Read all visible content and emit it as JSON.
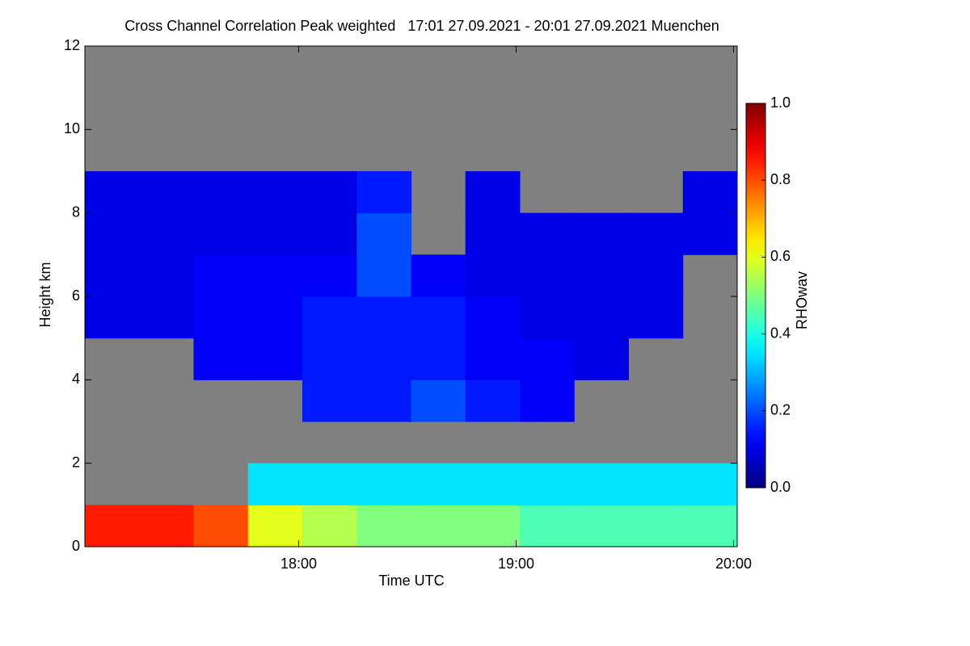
{
  "chart_data": {
    "type": "heatmap",
    "title": "Cross Channel Correlation Peak weighted   17:01 27.09.2021 - 20:01 27.09.2021 Muenchen",
    "xlabel": "Time UTC",
    "ylabel": "Height km",
    "colorbar_label": "RHOwav",
    "xlim": [
      17.0167,
      20.0167
    ],
    "xticks": [
      {
        "value": 18,
        "label": "18:00"
      },
      {
        "value": 19,
        "label": "19:00"
      },
      {
        "value": 20,
        "label": "20:00"
      }
    ],
    "ylim": [
      0,
      12
    ],
    "yticks": [
      0,
      2,
      4,
      6,
      8,
      10,
      12
    ],
    "zlim": [
      0,
      1
    ],
    "zticks": [
      {
        "value": 0,
        "label": "0.0"
      },
      0.2,
      0.4,
      0.6,
      0.8,
      {
        "value": 1,
        "label": "1.0"
      }
    ],
    "colormap": "jet",
    "background": "#808080",
    "xbins": [
      17.0167,
      17.2667,
      17.5167,
      17.7667,
      18.0167,
      18.2667,
      18.5167,
      18.7667,
      19.0167,
      19.2667,
      19.5167,
      19.7667,
      20.0167
    ],
    "ybins": [
      0,
      1,
      2,
      3,
      4,
      5,
      6,
      7,
      8,
      9,
      10,
      11,
      12
    ],
    "z": [
      [
        0.85,
        0.85,
        0.8,
        0.6,
        0.55,
        0.5,
        0.5,
        0.5,
        0.45,
        0.45,
        0.45,
        0.45
      ],
      [
        null,
        null,
        null,
        0.35,
        0.35,
        0.35,
        0.35,
        0.35,
        0.35,
        0.35,
        0.35,
        0.35
      ],
      [
        null,
        null,
        null,
        null,
        null,
        null,
        null,
        null,
        null,
        null,
        null,
        null
      ],
      [
        null,
        null,
        null,
        null,
        0.15,
        0.15,
        0.2,
        0.15,
        0.12,
        null,
        null,
        null
      ],
      [
        null,
        null,
        0.12,
        0.12,
        0.15,
        0.15,
        0.15,
        0.12,
        0.12,
        0.1,
        null,
        null
      ],
      [
        0.1,
        0.1,
        0.12,
        0.12,
        0.15,
        0.15,
        0.15,
        0.12,
        0.1,
        0.1,
        0.1,
        null
      ],
      [
        0.1,
        0.1,
        0.12,
        0.12,
        0.12,
        0.2,
        0.12,
        0.1,
        0.1,
        0.1,
        0.1,
        null
      ],
      [
        0.1,
        0.1,
        0.1,
        0.1,
        0.1,
        0.2,
        null,
        0.1,
        0.1,
        0.1,
        0.1,
        0.1
      ],
      [
        0.1,
        0.1,
        0.1,
        0.1,
        0.1,
        0.15,
        null,
        0.1,
        null,
        null,
        null,
        0.1
      ],
      [
        null,
        null,
        null,
        null,
        null,
        null,
        null,
        null,
        null,
        null,
        null,
        null
      ],
      [
        null,
        null,
        null,
        null,
        null,
        null,
        null,
        null,
        null,
        null,
        null,
        null
      ],
      [
        null,
        null,
        null,
        null,
        null,
        null,
        null,
        null,
        null,
        null,
        null,
        null
      ]
    ]
  }
}
